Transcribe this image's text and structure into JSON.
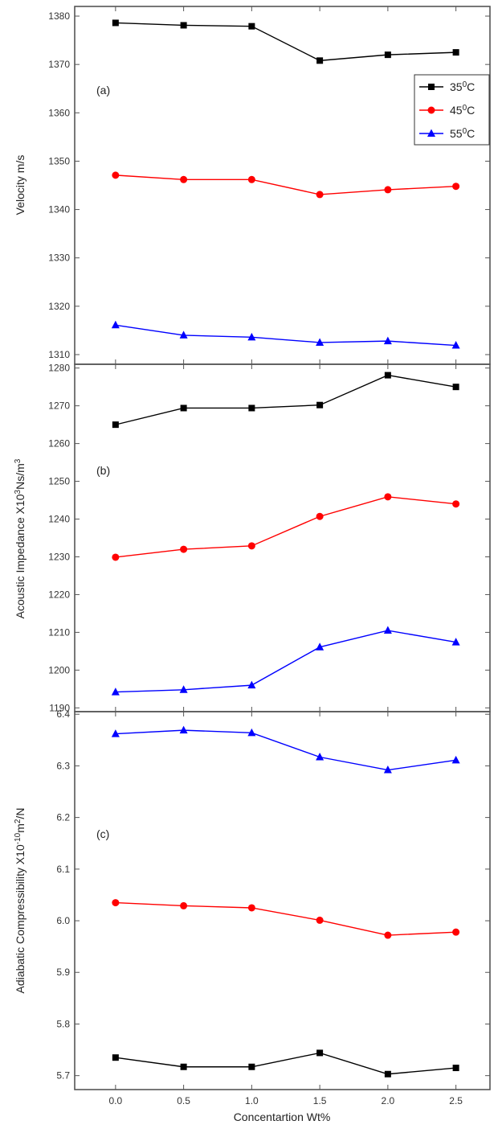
{
  "x_axis": {
    "label": "Concentartion Wt%",
    "ticks": [
      "0.0",
      "0.5",
      "1.0",
      "1.5",
      "2.0",
      "2.5"
    ],
    "values": [
      0.0,
      0.5,
      1.0,
      1.5,
      2.0,
      2.5
    ],
    "xlim": [
      -0.3,
      2.75
    ]
  },
  "colors": {
    "35": "#000000",
    "45": "#ff0000",
    "55": "#0000ff"
  },
  "legend": [
    {
      "prefix": "35",
      "sup": "0",
      "suffix": "C",
      "marker": "square",
      "color": "#000000"
    },
    {
      "prefix": "45",
      "sup": "0",
      "suffix": "C",
      "marker": "circle",
      "color": "#ff0000"
    },
    {
      "prefix": "55",
      "sup": "0",
      "suffix": "C",
      "marker": "triangle",
      "color": "#0000ff"
    }
  ],
  "chart_data": [
    {
      "type": "line",
      "panel_label": "(a)",
      "ylabel": "Velocity m/s",
      "ylim": [
        1308,
        1382
      ],
      "yticks": [
        1310,
        1320,
        1330,
        1340,
        1350,
        1360,
        1370,
        1380
      ],
      "x": [
        0.0,
        0.5,
        1.0,
        1.5,
        2.0,
        2.5
      ],
      "series": [
        {
          "name": "35⁰C",
          "marker": "square",
          "color": "#000000",
          "values": [
            1378.6,
            1378.1,
            1377.9,
            1370.8,
            1372.0,
            1372.5
          ]
        },
        {
          "name": "45⁰C",
          "marker": "circle",
          "color": "#ff0000",
          "values": [
            1347.1,
            1346.2,
            1346.2,
            1343.1,
            1344.1,
            1344.8
          ]
        },
        {
          "name": "55⁰C",
          "marker": "triangle",
          "color": "#0000ff",
          "values": [
            1316.1,
            1314.0,
            1313.6,
            1312.5,
            1312.8,
            1311.9
          ]
        }
      ]
    },
    {
      "type": "line",
      "panel_label": "(b)",
      "ylabel": {
        "prefix": "Acoustic Impedance X10",
        "sup": "3",
        "mid": "Ns/m",
        "sup2": "3"
      },
      "ylim": [
        1189,
        1281
      ],
      "yticks": [
        1190,
        1200,
        1210,
        1220,
        1230,
        1240,
        1250,
        1260,
        1270,
        1280
      ],
      "x": [
        0.0,
        0.5,
        1.0,
        1.5,
        2.0,
        2.5
      ],
      "series": [
        {
          "name": "35⁰C",
          "marker": "square",
          "color": "#000000",
          "values": [
            1265.0,
            1269.4,
            1269.4,
            1270.2,
            1278.1,
            1275.0
          ]
        },
        {
          "name": "45⁰C",
          "marker": "circle",
          "color": "#ff0000",
          "values": [
            1229.9,
            1232.0,
            1232.9,
            1240.7,
            1245.9,
            1244.0
          ]
        },
        {
          "name": "55⁰C",
          "marker": "triangle",
          "color": "#0000ff",
          "values": [
            1194.2,
            1194.8,
            1196.0,
            1206.1,
            1210.5,
            1207.4
          ]
        }
      ]
    },
    {
      "type": "line",
      "panel_label": "(c)",
      "ylabel": {
        "prefix": "Adiabatic Compressibility X10",
        "sup": "-10",
        "mid": "m",
        "sup2": "2",
        "suffix": "/N"
      },
      "ylim": [
        5.673,
        6.405
      ],
      "yticks": [
        "5.7",
        "5.8",
        "5.9",
        "6.0",
        "6.1",
        "6.2",
        "6.3",
        "6.4"
      ],
      "x": [
        0.0,
        0.5,
        1.0,
        1.5,
        2.0,
        2.5
      ],
      "series": [
        {
          "name": "55⁰C",
          "marker": "triangle",
          "color": "#0000ff",
          "values": [
            6.362,
            6.369,
            6.364,
            6.317,
            6.292,
            6.311
          ]
        },
        {
          "name": "45⁰C",
          "marker": "circle",
          "color": "#ff0000",
          "values": [
            6.035,
            6.029,
            6.025,
            6.001,
            5.972,
            5.978
          ]
        },
        {
          "name": "35⁰C",
          "marker": "square",
          "color": "#000000",
          "values": [
            5.735,
            5.717,
            5.717,
            5.744,
            5.703,
            5.715
          ]
        }
      ]
    }
  ]
}
